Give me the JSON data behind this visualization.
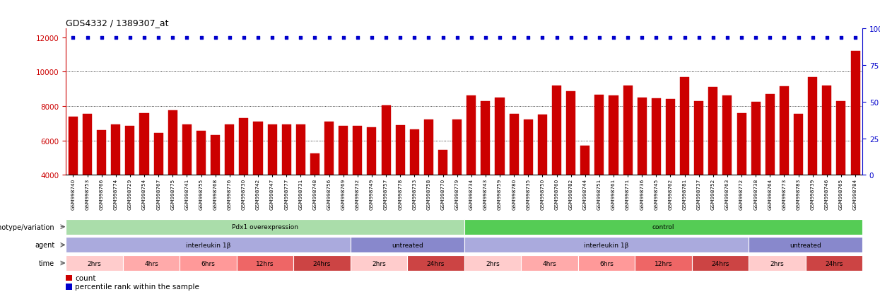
{
  "title": "GDS4332 / 1389307_at",
  "sample_labels": [
    "GSM998740",
    "GSM998753",
    "GSM998766",
    "GSM998774",
    "GSM998729",
    "GSM998754",
    "GSM998767",
    "GSM998775",
    "GSM998741",
    "GSM998755",
    "GSM998768",
    "GSM998776",
    "GSM998730",
    "GSM998742",
    "GSM998747",
    "GSM998777",
    "GSM998731",
    "GSM998748",
    "GSM998756",
    "GSM998769",
    "GSM998732",
    "GSM998749",
    "GSM998757",
    "GSM998778",
    "GSM998733",
    "GSM998758",
    "GSM998770",
    "GSM998779",
    "GSM998734",
    "GSM998743",
    "GSM998759",
    "GSM998780",
    "GSM998735",
    "GSM998750",
    "GSM998760",
    "GSM998782",
    "GSM998744",
    "GSM998751",
    "GSM998761",
    "GSM998771",
    "GSM998736",
    "GSM998745",
    "GSM998762",
    "GSM998781",
    "GSM998737",
    "GSM998752",
    "GSM998763",
    "GSM998772",
    "GSM998738",
    "GSM998764",
    "GSM998773",
    "GSM998783",
    "GSM998739",
    "GSM998746",
    "GSM998765",
    "GSM998784"
  ],
  "bar_values": [
    7400,
    7550,
    6600,
    6950,
    6850,
    7600,
    6450,
    7750,
    6950,
    6550,
    6300,
    6950,
    7300,
    7100,
    6950,
    6950,
    6950,
    5250,
    7100,
    6850,
    6850,
    6750,
    8050,
    6900,
    6650,
    7200,
    5450,
    7200,
    8600,
    8300,
    8500,
    7550,
    7200,
    7500,
    9200,
    8850,
    5700,
    8650,
    8600,
    9200,
    8500,
    8450,
    8400,
    9700,
    8300,
    9100,
    8600,
    7600,
    8250,
    8700,
    9150,
    7550,
    9700,
    9200,
    8300,
    11200
  ],
  "bar_color": "#cc0000",
  "percentile_color": "#0000cc",
  "ylim_left": [
    4000,
    12500
  ],
  "ylim_right": [
    0,
    100
  ],
  "yticks_left": [
    4000,
    6000,
    8000,
    10000,
    12000
  ],
  "yticks_right": [
    0,
    25,
    50,
    75,
    100
  ],
  "grid_values": [
    6000,
    8000,
    10000
  ],
  "genotype_row": [
    {
      "label": "Pdx1 overexpression",
      "start": 0,
      "end": 28,
      "color": "#aaddaa"
    },
    {
      "label": "control",
      "start": 28,
      "end": 56,
      "color": "#55cc55"
    }
  ],
  "agent_row": [
    {
      "label": "interleukin 1β",
      "start": 0,
      "end": 20,
      "color": "#aaaadd"
    },
    {
      "label": "untreated",
      "start": 20,
      "end": 28,
      "color": "#8888cc"
    },
    {
      "label": "interleukin 1β",
      "start": 28,
      "end": 48,
      "color": "#aaaadd"
    },
    {
      "label": "untreated",
      "start": 48,
      "end": 56,
      "color": "#8888cc"
    }
  ],
  "time_row": [
    {
      "label": "2hrs",
      "start": 0,
      "end": 4,
      "color": "#ffcccc"
    },
    {
      "label": "4hrs",
      "start": 4,
      "end": 8,
      "color": "#ffaaaa"
    },
    {
      "label": "6hrs",
      "start": 8,
      "end": 12,
      "color": "#ff9999"
    },
    {
      "label": "12hrs",
      "start": 12,
      "end": 16,
      "color": "#ee6666"
    },
    {
      "label": "24hrs",
      "start": 16,
      "end": 20,
      "color": "#cc4444"
    },
    {
      "label": "2hrs",
      "start": 20,
      "end": 24,
      "color": "#ffcccc"
    },
    {
      "label": "24hrs",
      "start": 24,
      "end": 28,
      "color": "#cc4444"
    },
    {
      "label": "2hrs",
      "start": 28,
      "end": 32,
      "color": "#ffcccc"
    },
    {
      "label": "4hrs",
      "start": 32,
      "end": 36,
      "color": "#ffaaaa"
    },
    {
      "label": "6hrs",
      "start": 36,
      "end": 40,
      "color": "#ff9999"
    },
    {
      "label": "12hrs",
      "start": 40,
      "end": 44,
      "color": "#ee6666"
    },
    {
      "label": "24hrs",
      "start": 44,
      "end": 48,
      "color": "#cc4444"
    },
    {
      "label": "2hrs",
      "start": 48,
      "end": 52,
      "color": "#ffcccc"
    },
    {
      "label": "24hrs",
      "start": 52,
      "end": 56,
      "color": "#cc4444"
    }
  ],
  "legend_count_label": "count",
  "legend_pct_label": "percentile rank within the sample",
  "background_color": "#ffffff",
  "plot_bg_color": "#ffffff"
}
